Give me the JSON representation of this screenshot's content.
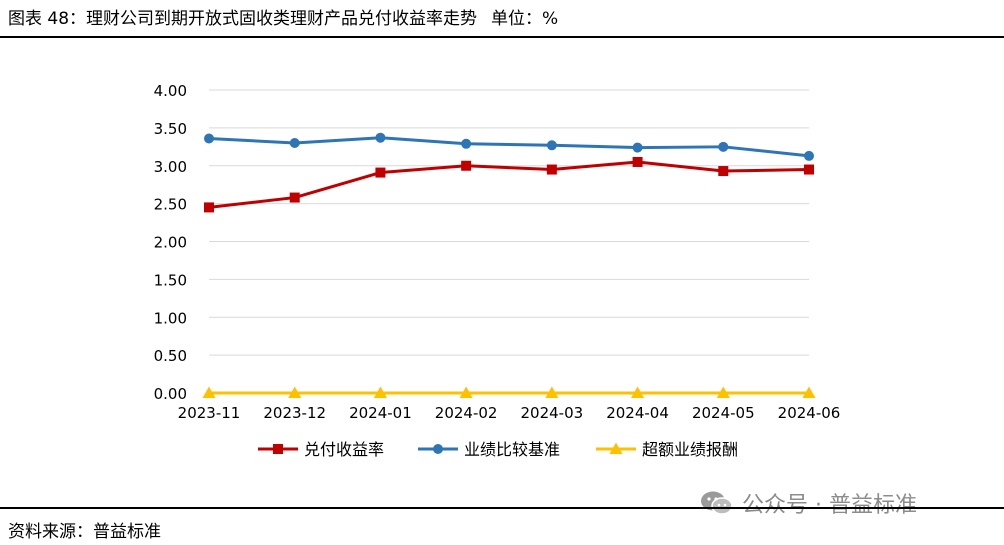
{
  "header": {
    "title": "图表 48：理财公司到期开放式固收类理财产品兑付收益率走势",
    "unit": "单位：%"
  },
  "footer": {
    "source": "资料来源：普益标准"
  },
  "watermark": {
    "text": "公众号 · 普益标准",
    "icon": "wechat-icon"
  },
  "chart_data": {
    "type": "line",
    "title": "",
    "xlabel": "",
    "ylabel": "",
    "categories": [
      "2023-11",
      "2023-12",
      "2024-01",
      "2024-02",
      "2024-03",
      "2024-04",
      "2024-05",
      "2024-06"
    ],
    "ylim": [
      0,
      4
    ],
    "yticks": [
      "0.00",
      "0.50",
      "1.00",
      "1.50",
      "2.00",
      "2.50",
      "3.00",
      "3.50",
      "4.00"
    ],
    "grid": true,
    "legend_position": "bottom",
    "series": [
      {
        "name": "兑付收益率",
        "color": "#c00000",
        "marker": "square",
        "values": [
          2.45,
          2.58,
          2.91,
          3.0,
          2.95,
          3.05,
          2.93,
          2.95
        ]
      },
      {
        "name": "业绩比较基准",
        "color": "#2e75b6",
        "marker": "circle",
        "values": [
          3.36,
          3.3,
          3.37,
          3.29,
          3.27,
          3.24,
          3.25,
          3.13
        ]
      },
      {
        "name": "超额业绩报酬",
        "color": "#ffc000",
        "marker": "triangle",
        "values": [
          0.0,
          0.0,
          0.0,
          0.0,
          0.0,
          0.0,
          0.0,
          0.0
        ]
      }
    ]
  }
}
